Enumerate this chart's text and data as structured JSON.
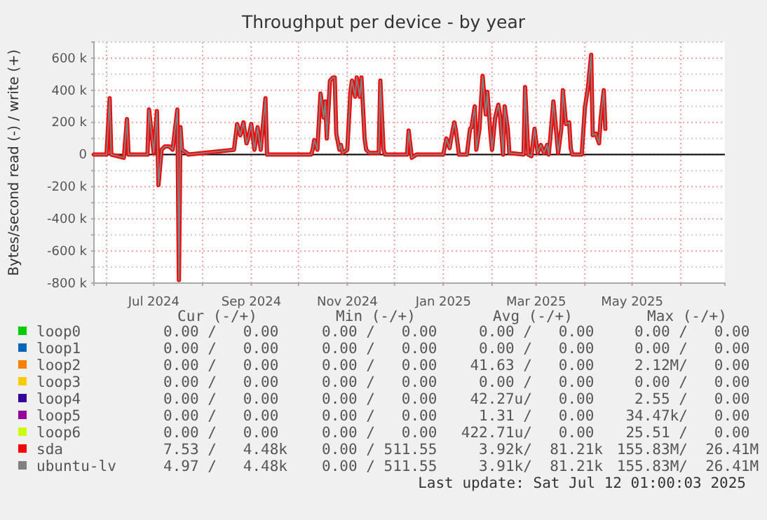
{
  "chart_data": {
    "type": "line",
    "title": "Throughput per device - by year",
    "ylabel": "Bytes/second read (-) / write (+)",
    "x": [
      "2024-05-24",
      "2024-06-01",
      "2024-06-03",
      "2024-06-04",
      "2024-06-12",
      "2024-06-14",
      "2024-06-15",
      "2024-06-27",
      "2024-06-28",
      "2024-07-01",
      "2024-07-03",
      "2024-07-04",
      "2024-07-06",
      "2024-07-08",
      "2024-07-11",
      "2024-07-13",
      "2024-07-16",
      "2024-07-17",
      "2024-07-18",
      "2024-07-19",
      "2024-07-22",
      "2024-07-23",
      "2024-08-21",
      "2024-08-23",
      "2024-08-25",
      "2024-08-27",
      "2024-08-29",
      "2024-08-30",
      "2024-09-01",
      "2024-09-03",
      "2024-09-05",
      "2024-09-07",
      "2024-09-10",
      "2024-09-11",
      "2024-10-09",
      "2024-10-10",
      "2024-10-11",
      "2024-10-13",
      "2024-10-15",
      "2024-10-17",
      "2024-10-18",
      "2024-10-19",
      "2024-10-21",
      "2024-10-23",
      "2024-10-24",
      "2024-10-25",
      "2024-10-27",
      "2024-10-28",
      "2024-10-29",
      "2024-11-01",
      "2024-11-03",
      "2024-11-04",
      "2024-11-06",
      "2024-11-07",
      "2024-11-09",
      "2024-11-10",
      "2024-11-12",
      "2024-11-13",
      "2024-11-15",
      "2024-11-21",
      "2024-11-22",
      "2024-11-24",
      "2024-11-25",
      "2024-12-09",
      "2024-12-10",
      "2024-12-12",
      "2024-12-15",
      "2025-01-01",
      "2025-01-03",
      "2025-01-05",
      "2025-01-06",
      "2025-01-08",
      "2025-01-09",
      "2025-01-11",
      "2025-01-16",
      "2025-01-18",
      "2025-01-19",
      "2025-01-21",
      "2025-01-22",
      "2025-01-24",
      "2025-01-26",
      "2025-01-28",
      "2025-01-29",
      "2025-01-31",
      "2025-02-01",
      "2025-02-03",
      "2025-02-05",
      "2025-02-06",
      "2025-02-08",
      "2025-02-09",
      "2025-02-11",
      "2025-02-12",
      "2025-02-21",
      "2025-02-22",
      "2025-02-24",
      "2025-02-26",
      "2025-02-28",
      "2025-03-02",
      "2025-03-04",
      "2025-03-06",
      "2025-03-08",
      "2025-03-09",
      "2025-03-10",
      "2025-03-12",
      "2025-03-14",
      "2025-03-15",
      "2025-03-17",
      "2025-03-18",
      "2025-03-20",
      "2025-03-22",
      "2025-03-23",
      "2025-03-24",
      "2025-03-30",
      "2025-04-01",
      "2025-04-03",
      "2025-04-05",
      "2025-04-06",
      "2025-04-08",
      "2025-04-10",
      "2025-04-11",
      "2025-04-13",
      "2025-04-14"
    ],
    "series": [
      {
        "name": "loop0",
        "color": "#00cc00",
        "values": [
          null,
          null,
          null,
          null,
          null,
          null,
          null,
          null,
          null,
          null,
          null,
          null,
          null,
          null,
          null,
          null,
          null,
          null,
          null,
          null,
          null,
          null,
          null,
          null,
          null,
          null,
          null,
          null,
          null,
          null,
          null,
          null,
          null,
          null,
          null,
          null,
          null,
          null,
          null,
          null,
          null,
          null,
          null,
          null,
          null,
          null,
          null,
          null,
          null,
          null,
          null,
          null,
          null,
          null,
          null,
          null,
          null,
          null,
          null,
          null,
          null,
          null,
          null,
          null,
          null,
          null,
          null,
          null,
          null,
          null,
          null,
          null,
          null,
          null,
          null,
          null,
          null,
          null,
          null,
          null,
          null,
          null,
          null,
          null,
          null,
          null,
          null,
          null,
          null,
          null,
          null,
          null,
          null,
          null,
          null,
          null,
          null,
          null,
          null,
          null,
          null,
          null,
          null,
          null,
          null,
          null,
          null,
          null,
          null,
          null,
          null,
          null,
          null,
          null,
          null,
          null,
          null,
          null,
          null,
          null,
          null,
          null
        ]
      },
      {
        "name": "loop1",
        "color": "#0066b3",
        "values": [
          null,
          null,
          null,
          null,
          null,
          null,
          null,
          null,
          null,
          null,
          null,
          null,
          null,
          null,
          null,
          null,
          null,
          null,
          null,
          null,
          null,
          null,
          null,
          null,
          null,
          null,
          null,
          null,
          null,
          null,
          null,
          null,
          null,
          null,
          null,
          null,
          null,
          null,
          null,
          null,
          null,
          null,
          null,
          null,
          null,
          null,
          null,
          null,
          null,
          null,
          null,
          null,
          null,
          null,
          null,
          null,
          null,
          null,
          null,
          null,
          null,
          null,
          null,
          null,
          null,
          null,
          null,
          null,
          null,
          null,
          null,
          null,
          null,
          null,
          null,
          null,
          null,
          null,
          null,
          null,
          null,
          null,
          null,
          null,
          null,
          null,
          null,
          null,
          null,
          null,
          null,
          null,
          null,
          null,
          null,
          null,
          null,
          null,
          null,
          null,
          null,
          null,
          null,
          null,
          null,
          null,
          null,
          null,
          null,
          null,
          null,
          null,
          null,
          null,
          null,
          null,
          null,
          null,
          null,
          null,
          null,
          null
        ]
      },
      {
        "name": "loop2",
        "color": "#ff8000",
        "values": [
          null,
          null,
          null,
          null,
          null,
          null,
          null,
          null,
          null,
          null,
          null,
          null,
          null,
          null,
          null,
          null,
          null,
          null,
          null,
          null,
          null,
          null,
          null,
          null,
          null,
          null,
          null,
          null,
          null,
          null,
          null,
          null,
          null,
          null,
          null,
          null,
          null,
          null,
          null,
          null,
          null,
          null,
          null,
          null,
          null,
          null,
          null,
          null,
          null,
          null,
          null,
          null,
          null,
          null,
          null,
          null,
          null,
          null,
          null,
          null,
          null,
          null,
          null,
          null,
          null,
          null,
          null,
          null,
          null,
          null,
          null,
          null,
          null,
          null,
          null,
          null,
          null,
          null,
          null,
          null,
          null,
          null,
          null,
          null,
          null,
          null,
          null,
          null,
          null,
          null,
          null,
          null,
          null,
          null,
          null,
          null,
          null,
          null,
          null,
          null,
          null,
          null,
          null,
          null,
          null,
          null,
          null,
          null,
          null,
          null,
          null,
          null,
          null,
          null,
          null,
          null,
          null,
          null,
          null,
          null,
          null,
          null
        ]
      },
      {
        "name": "loop3",
        "color": "#ffcc00",
        "values": [
          null,
          null,
          null,
          null,
          null,
          null,
          null,
          null,
          null,
          null,
          null,
          null,
          null,
          null,
          null,
          null,
          null,
          null,
          null,
          null,
          null,
          null,
          null,
          null,
          null,
          null,
          null,
          null,
          null,
          null,
          null,
          null,
          null,
          null,
          null,
          null,
          null,
          null,
          null,
          null,
          null,
          null,
          null,
          null,
          null,
          null,
          null,
          null,
          null,
          null,
          null,
          null,
          null,
          null,
          null,
          null,
          null,
          null,
          null,
          null,
          null,
          null,
          null,
          null,
          null,
          null,
          null,
          null,
          null,
          null,
          null,
          null,
          null,
          null,
          null,
          null,
          null,
          null,
          null,
          null,
          null,
          null,
          null,
          null,
          null,
          null,
          null,
          null,
          null,
          null,
          null,
          null,
          null,
          null,
          null,
          null,
          null,
          null,
          null,
          null,
          null,
          null,
          null,
          null,
          null,
          null,
          null,
          null,
          null,
          null,
          null,
          null,
          null,
          null,
          null,
          null,
          null,
          null,
          null,
          null,
          null,
          null
        ]
      },
      {
        "name": "loop4",
        "color": "#330099",
        "values": [
          null,
          null,
          null,
          null,
          null,
          null,
          null,
          null,
          null,
          null,
          null,
          null,
          null,
          null,
          null,
          null,
          null,
          null,
          null,
          null,
          null,
          null,
          null,
          null,
          null,
          null,
          null,
          null,
          null,
          null,
          null,
          null,
          null,
          null,
          null,
          null,
          null,
          null,
          null,
          null,
          null,
          null,
          null,
          null,
          null,
          null,
          null,
          null,
          null,
          null,
          null,
          null,
          null,
          null,
          null,
          null,
          null,
          null,
          null,
          null,
          null,
          null,
          null,
          null,
          null,
          null,
          null,
          null,
          null,
          null,
          null,
          null,
          null,
          null,
          null,
          null,
          null,
          null,
          null,
          null,
          null,
          null,
          null,
          null,
          null,
          null,
          null,
          null,
          null,
          null,
          null,
          null,
          null,
          null,
          null,
          null,
          null,
          null,
          null,
          null,
          null,
          null,
          null,
          null,
          null,
          null,
          null,
          null,
          null,
          null,
          null,
          null,
          null,
          null,
          null,
          null,
          null,
          null,
          null,
          null,
          null,
          null
        ]
      },
      {
        "name": "loop5",
        "color": "#990099",
        "values": [
          null,
          null,
          null,
          null,
          null,
          null,
          null,
          null,
          null,
          null,
          null,
          null,
          null,
          null,
          null,
          null,
          null,
          null,
          null,
          null,
          null,
          null,
          null,
          null,
          null,
          null,
          null,
          null,
          null,
          null,
          null,
          null,
          null,
          null,
          null,
          null,
          null,
          null,
          null,
          null,
          null,
          null,
          null,
          null,
          null,
          null,
          null,
          null,
          null,
          null,
          null,
          null,
          null,
          null,
          null,
          null,
          null,
          null,
          null,
          null,
          null,
          null,
          null,
          null,
          null,
          null,
          null,
          null,
          null,
          null,
          null,
          null,
          null,
          null,
          null,
          null,
          null,
          null,
          null,
          null,
          null,
          null,
          null,
          null,
          null,
          null,
          null,
          null,
          null,
          null,
          null,
          null,
          null,
          null,
          null,
          null,
          null,
          null,
          null,
          null,
          null,
          null,
          null,
          null,
          null,
          null,
          null,
          null,
          null,
          null,
          null,
          null,
          null,
          null,
          null,
          null,
          null,
          null,
          null,
          null,
          null,
          null
        ]
      },
      {
        "name": "loop6",
        "color": "#ccff00",
        "values": [
          null,
          null,
          null,
          null,
          null,
          null,
          null,
          null,
          null,
          null,
          null,
          null,
          null,
          null,
          null,
          null,
          null,
          null,
          null,
          null,
          null,
          null,
          null,
          null,
          null,
          null,
          null,
          null,
          null,
          null,
          null,
          null,
          null,
          null,
          null,
          null,
          null,
          null,
          null,
          null,
          null,
          null,
          null,
          null,
          null,
          null,
          null,
          null,
          null,
          null,
          null,
          null,
          null,
          null,
          null,
          null,
          null,
          null,
          null,
          null,
          null,
          null,
          null,
          null,
          null,
          null,
          null,
          null,
          null,
          null,
          null,
          null,
          null,
          null,
          null,
          null,
          null,
          null,
          null,
          null,
          null,
          null,
          null,
          null,
          null,
          null,
          null,
          null,
          null,
          null,
          null,
          null,
          null,
          null,
          null,
          null,
          null,
          null,
          null,
          null,
          null,
          null,
          null,
          null,
          null,
          null,
          null,
          null,
          null,
          null,
          null,
          null,
          null,
          null,
          null,
          null,
          null,
          null,
          null,
          null,
          null,
          null
        ]
      },
      {
        "name": "sda",
        "color": "#ff0000",
        "values": [
          0,
          0,
          350000,
          0,
          -20000,
          220000,
          0,
          0,
          280000,
          10000,
          270000,
          -190000,
          30000,
          50000,
          50000,
          30000,
          280000,
          -780000,
          170000,
          30000,
          10000,
          0,
          30000,
          190000,
          120000,
          200000,
          70000,
          100000,
          190000,
          30000,
          170000,
          30000,
          350000,
          0,
          0,
          30000,
          90000,
          30000,
          380000,
          230000,
          330000,
          100000,
          460000,
          480000,
          480000,
          130000,
          30000,
          60000,
          10000,
          30000,
          390000,
          460000,
          360000,
          480000,
          360000,
          480000,
          100000,
          30000,
          10000,
          10000,
          460000,
          30000,
          0,
          0,
          150000,
          -20000,
          0,
          0,
          100000,
          40000,
          100000,
          200000,
          150000,
          0,
          0,
          160000,
          170000,
          300000,
          30000,
          160000,
          490000,
          250000,
          390000,
          130000,
          30000,
          230000,
          310000,
          250000,
          0,
          300000,
          160000,
          10000,
          0,
          420000,
          0,
          -10000,
          160000,
          10000,
          60000,
          10000,
          60000,
          0,
          100000,
          330000,
          120000,
          10000,
          160000,
          400000,
          190000,
          200000,
          40000,
          0,
          0,
          290000,
          420000,
          620000,
          120000,
          130000,
          70000,
          220000,
          400000,
          160000
        ]
      },
      {
        "name": "ubuntu-lv",
        "color": "#808080",
        "values": [
          0,
          0,
          350000,
          0,
          -20000,
          220000,
          0,
          0,
          280000,
          10000,
          270000,
          -190000,
          30000,
          50000,
          50000,
          30000,
          280000,
          -780000,
          170000,
          30000,
          10000,
          0,
          30000,
          190000,
          120000,
          200000,
          70000,
          100000,
          190000,
          30000,
          170000,
          30000,
          350000,
          0,
          0,
          30000,
          90000,
          30000,
          380000,
          230000,
          330000,
          100000,
          460000,
          480000,
          480000,
          130000,
          30000,
          60000,
          10000,
          30000,
          390000,
          460000,
          360000,
          480000,
          360000,
          480000,
          100000,
          30000,
          10000,
          10000,
          460000,
          30000,
          0,
          0,
          150000,
          -20000,
          0,
          0,
          100000,
          40000,
          100000,
          200000,
          150000,
          0,
          0,
          160000,
          170000,
          300000,
          30000,
          160000,
          490000,
          250000,
          390000,
          130000,
          30000,
          230000,
          310000,
          250000,
          0,
          300000,
          160000,
          10000,
          0,
          420000,
          0,
          -10000,
          160000,
          10000,
          60000,
          10000,
          60000,
          0,
          100000,
          330000,
          120000,
          10000,
          160000,
          400000,
          190000,
          200000,
          40000,
          0,
          0,
          290000,
          420000,
          620000,
          120000,
          130000,
          70000,
          220000,
          400000,
          160000
        ]
      }
    ],
    "xlim": [
      "2024-05-24",
      "2025-06-29"
    ],
    "xticks": [
      {
        "value": "2024-06-01",
        "label": null
      },
      {
        "value": "2024-07-01",
        "label": "Jul 2024"
      },
      {
        "value": "2024-08-01",
        "label": null
      },
      {
        "value": "2024-09-01",
        "label": "Sep 2024"
      },
      {
        "value": "2024-10-01",
        "label": null
      },
      {
        "value": "2024-11-01",
        "label": "Nov 2024"
      },
      {
        "value": "2024-12-01",
        "label": null
      },
      {
        "value": "2025-01-01",
        "label": "Jan 2025"
      },
      {
        "value": "2025-02-01",
        "label": null
      },
      {
        "value": "2025-03-01",
        "label": "Mar 2025"
      },
      {
        "value": "2025-04-01",
        "label": null
      },
      {
        "value": "2025-05-01",
        "label": "May 2025"
      },
      {
        "value": "2025-06-01",
        "label": null
      }
    ],
    "ylim": [
      -800000,
      700000
    ],
    "yticks": [
      {
        "value": -800000,
        "label": "-800 k"
      },
      {
        "value": -700000,
        "label": null
      },
      {
        "value": -600000,
        "label": "-600 k"
      },
      {
        "value": -500000,
        "label": null
      },
      {
        "value": -400000,
        "label": "-400 k"
      },
      {
        "value": -300000,
        "label": null
      },
      {
        "value": -200000,
        "label": "-200 k"
      },
      {
        "value": -100000,
        "label": null
      },
      0,
      {
        "value": 100000,
        "label": null
      },
      {
        "value": 200000,
        "label": "200 k"
      },
      {
        "value": 300000,
        "label": null
      },
      {
        "value": 400000,
        "label": "400 k"
      },
      {
        "value": 500000,
        "label": null
      },
      {
        "value": 600000,
        "label": "600 k"
      },
      {
        "value": 700000,
        "label": null
      }
    ],
    "grid": true,
    "legend": "bottom",
    "line_style": "solid",
    "marker": "none",
    "annotations": [
      "Cur (-/+)",
      "Min (-/+)",
      "Avg (-/+)",
      "Max (-/+)",
      "0.00 /   0.00",
      "0.00 /   0.00",
      "0.00 /   0.00",
      "0.00 /   0.00",
      "0.00 /   0.00",
      "0.00 /   0.00",
      "0.00 /   0.00",
      "0.00 /   0.00",
      "0.00 /   0.00",
      "0.00 /   0.00",
      "41.63 /   0.00",
      "2.12M/   0.00",
      "0.00 /   0.00",
      "0.00 /   0.00",
      "0.00 /   0.00",
      "0.00 /   0.00",
      "0.00 /   0.00",
      "0.00 /   0.00",
      "42.27u/   0.00",
      "2.55 /   0.00",
      "0.00 /   0.00",
      "0.00 /   0.00",
      "1.31 /   0.00",
      "34.47k/   0.00",
      "0.00 /   0.00",
      "0.00 /   0.00",
      "422.71u/   0.00",
      "25.51 /   0.00",
      "7.53 /   4.48k",
      "0.00 / 511.55",
      "3.92k/  81.21k",
      "155.83M/  26.41M",
      "4.97 /   4.48k",
      "0.00 / 511.55",
      "3.91k/  81.21k",
      "155.83M/  26.41M",
      "Last update: Sat Jul 12 01:00:03 2025"
    ]
  }
}
